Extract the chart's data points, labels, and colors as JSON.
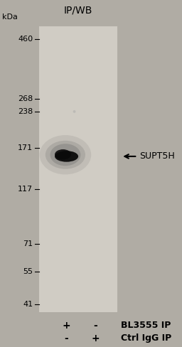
{
  "title": "IP/WB",
  "outer_bg_color": "#b0aca4",
  "gel_bg_color": "#d0ccc4",
  "marker_labels": [
    "460",
    "268",
    "238",
    "171",
    "117",
    "71",
    "55",
    "41"
  ],
  "marker_kda": [
    460,
    268,
    238,
    171,
    117,
    71,
    55,
    41
  ],
  "kda_label": "kDa",
  "band_label": "SUPT5H",
  "band_kda": 158,
  "col1_label_top": "+",
  "col1_label_bot": "-",
  "col2_label_top": "-",
  "col2_label_bot": "+",
  "row1_label": "BL3555 IP",
  "row2_label": "Ctrl IgG IP",
  "title_fontsize": 10,
  "marker_fontsize": 8,
  "label_fontsize": 9,
  "arrow_label_fontsize": 9,
  "small_dot_kda": 238,
  "log_min_kda": 38,
  "log_max_kda": 520
}
